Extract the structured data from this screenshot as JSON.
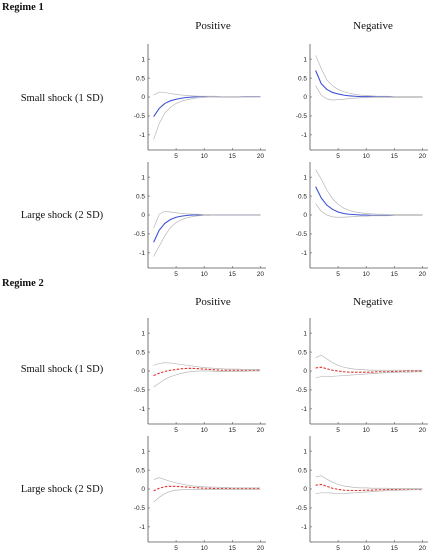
{
  "colors": {
    "regime1_line": "#3b4fd8",
    "regime2_line": "#e0302a",
    "band": "#b8b8b8",
    "axis": "#555555"
  },
  "regime_titles": [
    "Regime 1",
    "Regime 2"
  ],
  "column_titles": [
    "Positive",
    "Negative"
  ],
  "row_labels": [
    "Small shock (1 SD)",
    "Large shock (2 SD)"
  ],
  "chart_data": [
    {
      "id": "r1-small-pos",
      "regime": "Regime 1",
      "shock": "Small shock (1 SD)",
      "sign": "Positive",
      "type": "line",
      "xlim": [
        0,
        21
      ],
      "ylim": [
        -1.4,
        1.4
      ],
      "xticks": [
        5,
        10,
        15,
        20
      ],
      "yticks": [
        -1,
        -0.5,
        0,
        0.5,
        1
      ],
      "xtick_labels": [
        "5",
        "10",
        "15",
        "20"
      ],
      "ytick_labels": [
        "-1",
        "-0.5",
        "0",
        "0.5",
        "1"
      ],
      "x": [
        1,
        2,
        3,
        4,
        5,
        6,
        7,
        8,
        9,
        10,
        11,
        12,
        13,
        14,
        15,
        16,
        17,
        18,
        19,
        20
      ],
      "series": [
        {
          "role": "irf",
          "values": [
            -0.52,
            -0.3,
            -0.17,
            -0.1,
            -0.06,
            -0.03,
            -0.01,
            0,
            0.01,
            0.01,
            0.01,
            0.01,
            0,
            0,
            0,
            0,
            0.01,
            0.01,
            0.01,
            0.01
          ]
        },
        {
          "role": "upper",
          "values": [
            0.05,
            0.13,
            0.12,
            0.09,
            0.07,
            0.05,
            0.04,
            0.03,
            0.02,
            0.02,
            0.02,
            0.02,
            0.01,
            0.01,
            0.01,
            0.01,
            0.01,
            0.01,
            0.01,
            0.01
          ]
        },
        {
          "role": "lower",
          "values": [
            -1.12,
            -0.7,
            -0.42,
            -0.27,
            -0.17,
            -0.11,
            -0.07,
            -0.04,
            -0.02,
            -0.01,
            0,
            0,
            0,
            0,
            0,
            0,
            0,
            0,
            0,
            0
          ]
        }
      ]
    },
    {
      "id": "r1-small-neg",
      "regime": "Regime 1",
      "shock": "Small shock (1 SD)",
      "sign": "Negative",
      "type": "line",
      "xlim": [
        0,
        21
      ],
      "ylim": [
        -1.4,
        1.4
      ],
      "xticks": [
        5,
        10,
        15,
        20
      ],
      "yticks": [
        -1,
        -0.5,
        0,
        0.5,
        1
      ],
      "xtick_labels": [
        "5",
        "10",
        "15",
        "20"
      ],
      "ytick_labels": [
        "-1",
        "-0.5",
        "0",
        "0.5",
        "1"
      ],
      "x": [
        1,
        2,
        3,
        4,
        5,
        6,
        7,
        8,
        9,
        10,
        11,
        12,
        13,
        14,
        15,
        16,
        17,
        18,
        19,
        20
      ],
      "series": [
        {
          "role": "irf",
          "values": [
            0.7,
            0.35,
            0.2,
            0.12,
            0.08,
            0.05,
            0.03,
            0.02,
            0.01,
            0.01,
            0.01,
            0,
            0,
            0,
            0,
            0,
            0,
            0,
            0,
            0
          ]
        },
        {
          "role": "upper",
          "values": [
            1.1,
            0.75,
            0.45,
            0.3,
            0.2,
            0.14,
            0.1,
            0.07,
            0.05,
            0.04,
            0.03,
            0.02,
            0.02,
            0.02,
            0.01,
            0.01,
            0.01,
            0.01,
            0.01,
            0.01
          ]
        },
        {
          "role": "lower",
          "values": [
            0.3,
            0.05,
            -0.05,
            -0.08,
            -0.07,
            -0.06,
            -0.04,
            -0.03,
            -0.02,
            -0.02,
            -0.01,
            -0.01,
            -0.01,
            -0.01,
            -0.01,
            -0.01,
            -0.01,
            -0.01,
            -0.01,
            -0.01
          ]
        }
      ]
    },
    {
      "id": "r1-large-pos",
      "regime": "Regime 1",
      "shock": "Large shock (2 SD)",
      "sign": "Positive",
      "type": "line",
      "xlim": [
        0,
        21
      ],
      "ylim": [
        -1.4,
        1.4
      ],
      "xticks": [
        5,
        10,
        15,
        20
      ],
      "yticks": [
        -1,
        -0.5,
        0,
        0.5,
        1
      ],
      "xtick_labels": [
        "5",
        "10",
        "15",
        "20"
      ],
      "ytick_labels": [
        "-1",
        "-0.5",
        "0",
        "0.5",
        "1"
      ],
      "x": [
        1,
        2,
        3,
        4,
        5,
        6,
        7,
        8,
        9,
        10,
        11,
        12,
        13,
        14,
        15,
        16,
        17,
        18,
        19,
        20
      ],
      "series": [
        {
          "role": "irf",
          "values": [
            -0.72,
            -0.4,
            -0.22,
            -0.12,
            -0.06,
            -0.03,
            -0.01,
            0,
            0,
            0,
            0,
            0,
            0,
            0,
            0,
            0,
            0,
            0,
            0,
            0
          ]
        },
        {
          "role": "upper",
          "values": [
            -0.35,
            0.02,
            0.1,
            0.08,
            0.06,
            0.04,
            0.03,
            0.02,
            0.02,
            0.01,
            0.01,
            0.01,
            0.01,
            0.01,
            0.01,
            0.01,
            0.01,
            0.01,
            0.01,
            0.01
          ]
        },
        {
          "role": "lower",
          "values": [
            -1.1,
            -0.82,
            -0.55,
            -0.33,
            -0.2,
            -0.12,
            -0.07,
            -0.04,
            -0.02,
            -0.01,
            -0.01,
            0,
            0,
            0,
            0,
            0,
            0,
            0,
            0,
            0
          ]
        }
      ]
    },
    {
      "id": "r1-large-neg",
      "regime": "Regime 1",
      "shock": "Large shock (2 SD)",
      "sign": "Negative",
      "type": "line",
      "xlim": [
        0,
        21
      ],
      "ylim": [
        -1.4,
        1.4
      ],
      "xticks": [
        5,
        10,
        15,
        20
      ],
      "yticks": [
        -1,
        -0.5,
        0,
        0.5,
        1
      ],
      "xtick_labels": [
        "5",
        "10",
        "15",
        "20"
      ],
      "ytick_labels": [
        "-1",
        "-0.5",
        "0",
        "0.5",
        "1"
      ],
      "x": [
        1,
        2,
        3,
        4,
        5,
        6,
        7,
        8,
        9,
        10,
        11,
        12,
        13,
        14,
        15,
        16,
        17,
        18,
        19,
        20
      ],
      "series": [
        {
          "role": "irf",
          "values": [
            0.75,
            0.45,
            0.26,
            0.15,
            0.08,
            0.04,
            0.02,
            0.01,
            0,
            0,
            -0.01,
            -0.01,
            -0.01,
            -0.01,
            0,
            0,
            0,
            0,
            0,
            0
          ]
        },
        {
          "role": "upper",
          "values": [
            1.2,
            0.95,
            0.66,
            0.43,
            0.28,
            0.18,
            0.12,
            0.08,
            0.06,
            0.04,
            0.03,
            0.02,
            0.02,
            0.01,
            0.01,
            0.01,
            0.01,
            0.01,
            0.01,
            0.01
          ]
        },
        {
          "role": "lower",
          "values": [
            0.3,
            0.1,
            0,
            -0.05,
            -0.06,
            -0.06,
            -0.05,
            -0.04,
            -0.03,
            -0.03,
            -0.02,
            -0.02,
            -0.02,
            -0.02,
            -0.01,
            -0.01,
            -0.01,
            -0.01,
            -0.01,
            -0.01
          ]
        }
      ]
    },
    {
      "id": "r2-small-pos",
      "regime": "Regime 2",
      "shock": "Small shock (1 SD)",
      "sign": "Positive",
      "type": "line",
      "xlim": [
        0,
        21
      ],
      "ylim": [
        -1.4,
        1.4
      ],
      "xticks": [
        5,
        10,
        15,
        20
      ],
      "yticks": [
        -1,
        -0.5,
        0,
        0.5,
        1
      ],
      "xtick_labels": [
        "5",
        "10",
        "15",
        "20"
      ],
      "ytick_labels": [
        "-1",
        "-0.5",
        "0",
        "0.5",
        "1"
      ],
      "x": [
        1,
        2,
        3,
        4,
        5,
        6,
        7,
        8,
        9,
        10,
        11,
        12,
        13,
        14,
        15,
        16,
        17,
        18,
        19,
        20
      ],
      "series": [
        {
          "role": "irf",
          "values": [
            -0.12,
            -0.06,
            -0.01,
            0.02,
            0.04,
            0.06,
            0.07,
            0.07,
            0.06,
            0.05,
            0.04,
            0.03,
            0.02,
            0.02,
            0.02,
            0.02,
            0.02,
            0.02,
            0.02,
            0.02
          ]
        },
        {
          "role": "upper",
          "values": [
            0.15,
            0.2,
            0.22,
            0.21,
            0.19,
            0.17,
            0.15,
            0.13,
            0.11,
            0.09,
            0.08,
            0.07,
            0.06,
            0.05,
            0.05,
            0.05,
            0.04,
            0.04,
            0.04,
            0.04
          ]
        },
        {
          "role": "lower",
          "values": [
            -0.42,
            -0.32,
            -0.22,
            -0.15,
            -0.1,
            -0.06,
            -0.03,
            -0.01,
            0,
            0,
            0,
            -0.01,
            -0.01,
            -0.01,
            -0.01,
            -0.01,
            -0.01,
            0,
            0,
            0
          ]
        }
      ]
    },
    {
      "id": "r2-small-neg",
      "regime": "Regime 2",
      "shock": "Small shock (1 SD)",
      "sign": "Negative",
      "type": "line",
      "xlim": [
        0,
        21
      ],
      "ylim": [
        -1.4,
        1.4
      ],
      "xticks": [
        5,
        10,
        15,
        20
      ],
      "yticks": [
        -1,
        -0.5,
        0,
        0.5,
        1
      ],
      "xtick_labels": [
        "5",
        "10",
        "15",
        "20"
      ],
      "ytick_labels": [
        "-1",
        "-0.5",
        "0",
        "0.5",
        "1"
      ],
      "x": [
        1,
        2,
        3,
        4,
        5,
        6,
        7,
        8,
        9,
        10,
        11,
        12,
        13,
        14,
        15,
        16,
        17,
        18,
        19,
        20
      ],
      "series": [
        {
          "role": "irf",
          "values": [
            0.08,
            0.1,
            0.06,
            0.02,
            0,
            -0.02,
            -0.03,
            -0.03,
            -0.03,
            -0.03,
            -0.03,
            -0.02,
            -0.02,
            -0.02,
            -0.01,
            -0.01,
            0,
            0,
            0,
            0
          ]
        },
        {
          "role": "upper",
          "values": [
            0.35,
            0.42,
            0.32,
            0.22,
            0.15,
            0.1,
            0.07,
            0.05,
            0.04,
            0.03,
            0.02,
            0.02,
            0.02,
            0.02,
            0.02,
            0.02,
            0.02,
            0.02,
            0.02,
            0.02
          ]
        },
        {
          "role": "lower",
          "values": [
            -0.18,
            -0.15,
            -0.15,
            -0.14,
            -0.13,
            -0.12,
            -0.11,
            -0.1,
            -0.09,
            -0.08,
            -0.07,
            -0.06,
            -0.05,
            -0.04,
            -0.04,
            -0.03,
            -0.03,
            -0.03,
            -0.02,
            -0.02
          ]
        }
      ]
    },
    {
      "id": "r2-large-pos",
      "regime": "Regime 2",
      "shock": "Large shock (2 SD)",
      "sign": "Positive",
      "type": "line",
      "xlim": [
        0,
        21
      ],
      "ylim": [
        -1.4,
        1.4
      ],
      "xticks": [
        5,
        10,
        15,
        20
      ],
      "yticks": [
        -1,
        -0.5,
        0,
        0.5,
        1
      ],
      "xtick_labels": [
        "5",
        "10",
        "15",
        "20"
      ],
      "ytick_labels": [
        "-1",
        "-0.5",
        "0",
        "0.5",
        "1"
      ],
      "x": [
        1,
        2,
        3,
        4,
        5,
        6,
        7,
        8,
        9,
        10,
        11,
        12,
        13,
        14,
        15,
        16,
        17,
        18,
        19,
        20
      ],
      "series": [
        {
          "role": "irf",
          "values": [
            -0.05,
            0.02,
            0.06,
            0.07,
            0.07,
            0.06,
            0.05,
            0.04,
            0.03,
            0.02,
            0.02,
            0.01,
            0.01,
            0.01,
            0.01,
            0.01,
            0.01,
            0.01,
            0.01,
            0.01
          ]
        },
        {
          "role": "upper",
          "values": [
            0.25,
            0.3,
            0.25,
            0.2,
            0.16,
            0.13,
            0.1,
            0.08,
            0.07,
            0.06,
            0.05,
            0.05,
            0.04,
            0.04,
            0.03,
            0.03,
            0.03,
            0.03,
            0.03,
            0.03
          ]
        },
        {
          "role": "lower",
          "values": [
            -0.35,
            -0.22,
            -0.12,
            -0.06,
            -0.03,
            -0.02,
            -0.01,
            -0.01,
            -0.01,
            -0.01,
            -0.01,
            -0.01,
            -0.01,
            -0.01,
            -0.01,
            -0.01,
            -0.01,
            -0.01,
            -0.01,
            -0.01
          ]
        }
      ]
    },
    {
      "id": "r2-large-neg",
      "regime": "Regime 2",
      "shock": "Large shock (2 SD)",
      "sign": "Negative",
      "type": "line",
      "xlim": [
        0,
        21
      ],
      "ylim": [
        -1.4,
        1.4
      ],
      "xticks": [
        5,
        10,
        15,
        20
      ],
      "yticks": [
        -1,
        -0.5,
        0,
        0.5,
        1
      ],
      "xtick_labels": [
        "5",
        "10",
        "15",
        "20"
      ],
      "ytick_labels": [
        "-1",
        "-0.5",
        "0",
        "0.5",
        "1"
      ],
      "x": [
        1,
        2,
        3,
        4,
        5,
        6,
        7,
        8,
        9,
        10,
        11,
        12,
        13,
        14,
        15,
        16,
        17,
        18,
        19,
        20
      ],
      "series": [
        {
          "role": "irf",
          "values": [
            0.1,
            0.12,
            0.07,
            0.02,
            -0.01,
            -0.03,
            -0.04,
            -0.04,
            -0.04,
            -0.03,
            -0.03,
            -0.02,
            -0.02,
            -0.01,
            -0.01,
            -0.01,
            0,
            0,
            0,
            0
          ]
        },
        {
          "role": "upper",
          "values": [
            0.32,
            0.35,
            0.26,
            0.18,
            0.12,
            0.08,
            0.06,
            0.04,
            0.03,
            0.03,
            0.02,
            0.02,
            0.02,
            0.02,
            0.01,
            0.01,
            0.01,
            0.01,
            0.01,
            0.01
          ]
        },
        {
          "role": "lower",
          "values": [
            -0.12,
            -0.1,
            -0.1,
            -0.11,
            -0.12,
            -0.12,
            -0.11,
            -0.1,
            -0.09,
            -0.08,
            -0.07,
            -0.06,
            -0.05,
            -0.04,
            -0.04,
            -0.03,
            -0.03,
            -0.02,
            -0.02,
            -0.02
          ]
        }
      ]
    }
  ]
}
